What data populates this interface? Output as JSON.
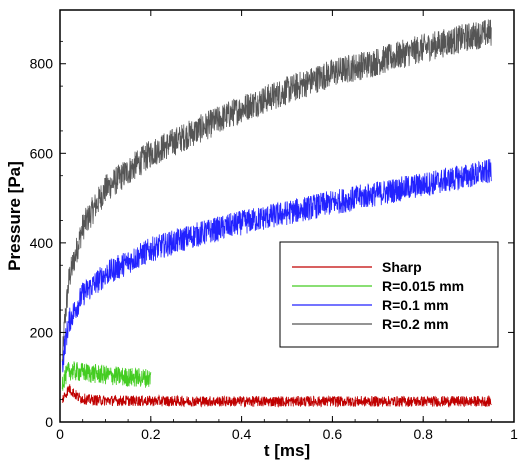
{
  "chart_data": {
    "type": "line",
    "title": "",
    "xlabel": "t [ms]",
    "ylabel": "Pressure [Pa]",
    "xlim": [
      0,
      1
    ],
    "ylim": [
      0,
      920
    ],
    "xticks": [
      0,
      0.2,
      0.4,
      0.6,
      0.8,
      1
    ],
    "xtick_labels": [
      "0",
      "0.2",
      "0.4",
      "0.6",
      "0.8",
      "1"
    ],
    "yticks": [
      0,
      200,
      400,
      600,
      800
    ],
    "ytick_labels": [
      "0",
      "200",
      "400",
      "600",
      "800"
    ],
    "grid": false,
    "legend_position": "middle-right",
    "series": [
      {
        "name": "Sharp",
        "color": "#c00000",
        "noise": 12,
        "x": [
          0.005,
          0.02,
          0.04,
          0.06,
          0.1,
          0.2,
          0.4,
          0.6,
          0.8,
          0.95
        ],
        "y": [
          50,
          75,
          55,
          50,
          48,
          47,
          46,
          46,
          46,
          46
        ]
      },
      {
        "name": "R=0.015 mm",
        "color": "#44cc22",
        "noise": 22,
        "x": [
          0.005,
          0.02,
          0.04,
          0.06,
          0.1,
          0.15,
          0.2
        ],
        "y": [
          90,
          115,
          112,
          110,
          105,
          100,
          98
        ]
      },
      {
        "name": "R=0.1 mm",
        "color": "#2222ff",
        "noise": 28,
        "x": [
          0.005,
          0.01,
          0.02,
          0.05,
          0.1,
          0.2,
          0.3,
          0.4,
          0.5,
          0.6,
          0.7,
          0.8,
          0.9,
          0.95
        ],
        "y": [
          120,
          170,
          225,
          285,
          330,
          385,
          418,
          445,
          467,
          490,
          510,
          530,
          550,
          560
        ]
      },
      {
        "name": "R=0.2 mm",
        "color": "#555555",
        "noise": 32,
        "x": [
          0.005,
          0.01,
          0.02,
          0.05,
          0.1,
          0.2,
          0.3,
          0.4,
          0.5,
          0.6,
          0.7,
          0.8,
          0.9,
          0.95
        ],
        "y": [
          130,
          220,
          320,
          435,
          520,
          600,
          650,
          700,
          740,
          780,
          805,
          835,
          860,
          870
        ]
      }
    ]
  }
}
